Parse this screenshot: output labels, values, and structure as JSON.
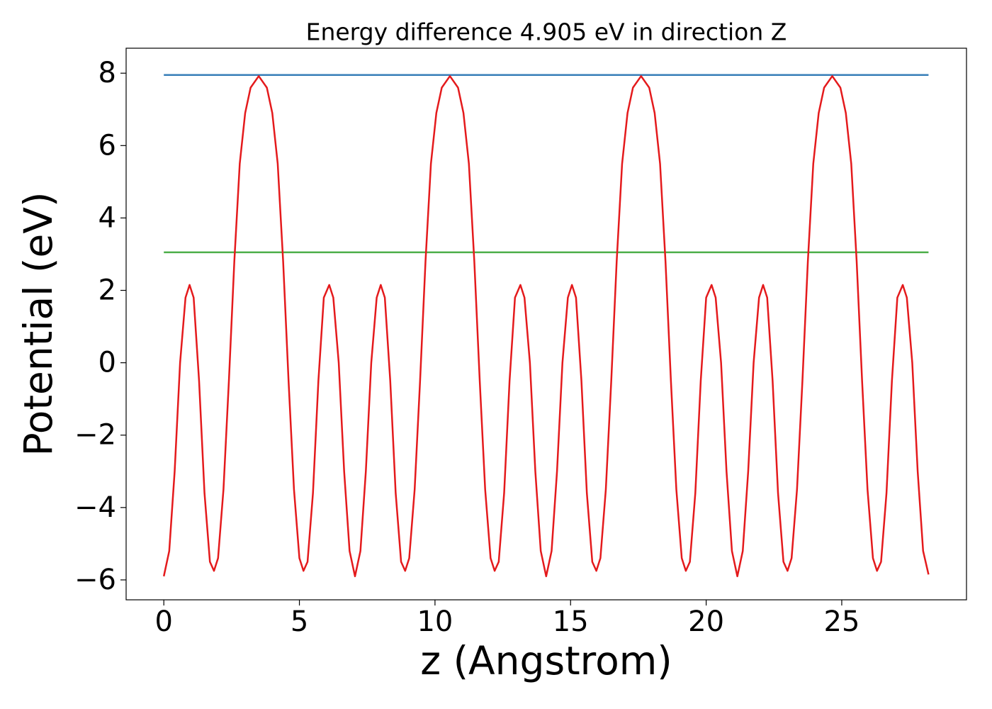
{
  "chart_data": {
    "type": "line",
    "title": "Energy difference 4.905 eV in direction Z",
    "xlabel": "z (Angstrom)",
    "ylabel": "Potential (eV)",
    "xlim": [
      -1.39,
      29.6
    ],
    "ylim": [
      -6.55,
      8.69
    ],
    "xticks": [
      0,
      5,
      10,
      15,
      20,
      25
    ],
    "yticks": [
      {
        "value": -6,
        "label": "−6"
      },
      {
        "value": -4,
        "label": "−4"
      },
      {
        "value": -2,
        "label": "−2"
      },
      0,
      2,
      4,
      6,
      8
    ],
    "grid": false,
    "series": [
      {
        "color": "#e41a1c",
        "x": [
          0,
          0.2,
          0.4,
          0.6,
          0.8,
          0.95,
          1.1,
          1.3,
          1.5,
          1.7,
          1.85,
          2.0,
          2.2,
          2.4,
          2.6,
          2.8,
          3.0,
          3.2,
          3.5,
          3.8,
          4.0,
          4.2,
          4.4,
          4.6,
          4.8,
          5.0,
          5.15,
          5.3,
          5.5,
          5.7,
          5.9,
          6.1,
          6.25,
          6.45,
          6.65,
          6.85,
          7.05,
          7.25,
          7.45,
          7.65,
          7.85,
          8.0,
          8.15,
          8.35,
          8.55,
          8.75,
          8.9,
          9.05,
          9.25,
          9.45,
          9.65,
          9.85,
          10.05,
          10.25,
          10.55,
          10.85,
          11.05,
          11.25,
          11.45,
          11.65,
          11.85,
          12.05,
          12.2,
          12.35,
          12.55,
          12.75,
          12.95,
          13.15,
          13.3,
          13.5,
          13.7,
          13.9,
          14.1,
          14.3,
          14.5,
          14.7,
          14.9,
          15.05,
          15.2,
          15.4,
          15.6,
          15.8,
          15.95,
          16.1,
          16.3,
          16.5,
          16.7,
          16.9,
          17.1,
          17.3,
          17.6,
          17.9,
          18.1,
          18.3,
          18.5,
          18.7,
          18.9,
          19.1,
          19.25,
          19.4,
          19.6,
          19.8,
          20.0,
          20.2,
          20.35,
          20.55,
          20.75,
          20.95,
          21.15,
          21.35,
          21.55,
          21.75,
          21.95,
          22.1,
          22.25,
          22.45,
          22.65,
          22.85,
          23.0,
          23.15,
          23.35,
          23.55,
          23.75,
          23.95,
          24.15,
          24.35,
          24.65,
          24.95,
          25.15,
          25.35,
          25.55,
          25.75,
          25.95,
          26.15,
          26.3,
          26.45,
          26.65,
          26.85,
          27.05,
          27.25,
          27.4,
          27.6,
          27.8,
          28.0,
          28.2
        ],
        "values": [
          -5.9,
          -5.2,
          -3.0,
          0.0,
          1.8,
          2.15,
          1.8,
          -0.5,
          -3.6,
          -5.5,
          -5.75,
          -5.4,
          -3.5,
          -0.5,
          2.8,
          5.5,
          6.9,
          7.6,
          7.92,
          7.6,
          6.9,
          5.5,
          2.8,
          -0.5,
          -3.5,
          -5.4,
          -5.75,
          -5.5,
          -3.6,
          -0.5,
          1.8,
          2.15,
          1.8,
          0.0,
          -3.0,
          -5.2,
          -5.9,
          -5.2,
          -3.0,
          0.0,
          1.8,
          2.15,
          1.8,
          -0.5,
          -3.6,
          -5.5,
          -5.75,
          -5.4,
          -3.5,
          -0.5,
          2.8,
          5.5,
          6.9,
          7.6,
          7.92,
          7.6,
          6.9,
          5.5,
          2.8,
          -0.5,
          -3.5,
          -5.4,
          -5.75,
          -5.5,
          -3.6,
          -0.5,
          1.8,
          2.15,
          1.8,
          0.0,
          -3.0,
          -5.2,
          -5.9,
          -5.2,
          -3.0,
          0.0,
          1.8,
          2.15,
          1.8,
          -0.5,
          -3.6,
          -5.5,
          -5.75,
          -5.4,
          -3.5,
          -0.5,
          2.8,
          5.5,
          6.9,
          7.6,
          7.92,
          7.6,
          6.9,
          5.5,
          2.8,
          -0.5,
          -3.5,
          -5.4,
          -5.75,
          -5.5,
          -3.6,
          -0.5,
          1.8,
          2.15,
          1.8,
          0.0,
          -3.0,
          -5.2,
          -5.9,
          -5.2,
          -3.0,
          0.0,
          1.8,
          2.15,
          1.8,
          -0.5,
          -3.6,
          -5.5,
          -5.75,
          -5.4,
          -3.5,
          -0.5,
          2.8,
          5.5,
          6.9,
          7.6,
          7.92,
          7.6,
          6.9,
          5.5,
          2.8,
          -0.5,
          -3.5,
          -5.4,
          -5.75,
          -5.5,
          -3.6,
          -0.5,
          1.8,
          2.15,
          1.8,
          0.0,
          -3.0,
          -5.2,
          -5.85
        ]
      },
      {
        "color": "#377eb8",
        "x": [
          0,
          28.2
        ],
        "values": [
          7.95,
          7.95
        ]
      },
      {
        "color": "#4daf4a",
        "x": [
          0,
          28.2
        ],
        "values": [
          3.05,
          3.05
        ]
      }
    ]
  }
}
